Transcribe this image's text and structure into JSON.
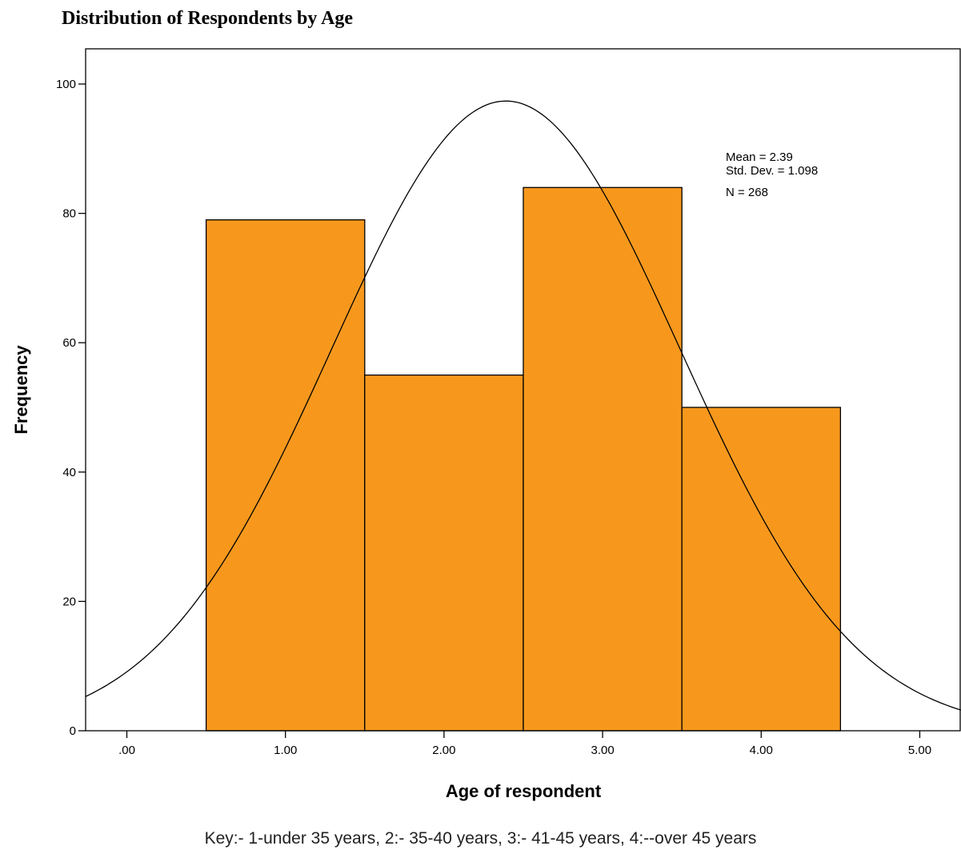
{
  "chart_data": {
    "type": "bar",
    "title": "Distribution of Respondents by Age",
    "xlabel": "Age of respondent",
    "ylabel": "Frequency",
    "x_ticks": [
      ".00",
      "1.00",
      "2.00",
      "3.00",
      "4.00",
      "5.00"
    ],
    "x_tick_values": [
      0,
      1,
      2,
      3,
      4,
      5
    ],
    "y_ticks": [
      "0",
      "20",
      "40",
      "60",
      "80",
      "100"
    ],
    "y_tick_values": [
      0,
      20,
      40,
      60,
      80,
      100
    ],
    "xlim": [
      -0.26,
      5.26
    ],
    "ylim": [
      0,
      100
    ],
    "bins": [
      {
        "from": 0.5,
        "to": 1.5,
        "value": 79
      },
      {
        "from": 1.5,
        "to": 2.5,
        "value": 55
      },
      {
        "from": 2.5,
        "to": 3.5,
        "value": 84
      },
      {
        "from": 3.5,
        "to": 4.5,
        "value": 50
      }
    ],
    "normal_curve": {
      "mean": 2.39,
      "sd": 1.098,
      "n": 268,
      "bin_width": 1
    },
    "stats": {
      "mean": "Mean = 2.39",
      "std_dev": "Std. Dev. = 1.098",
      "n": "N = 268"
    },
    "key": "Key:- 1-under 35 years, 2:- 35-40 years, 3:- 41-45 years, 4:--over 45 years",
    "bar_color": "#f7981d",
    "bar_stroke": "#000000",
    "grid": false,
    "legend": "none"
  }
}
